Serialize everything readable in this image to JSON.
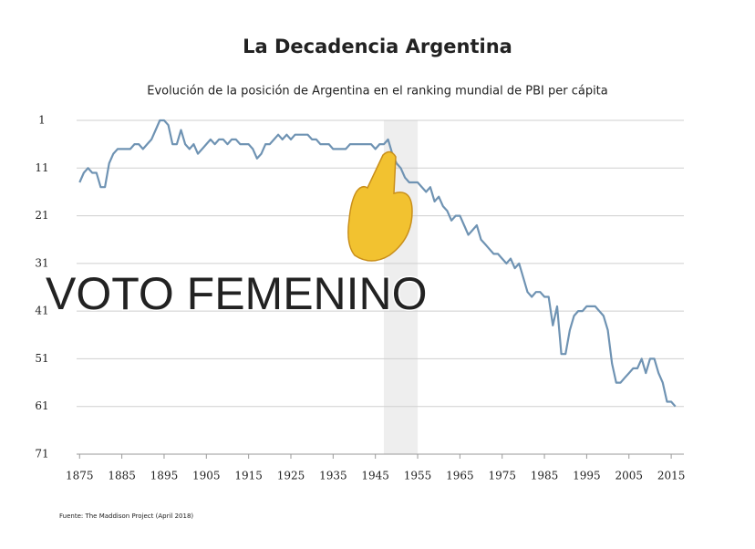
{
  "chart_data": {
    "type": "line",
    "title": "La Decadencia Argentina",
    "subtitle": "Evolución de la posición de Argentina en el ranking mundial de PBI per cápita",
    "source": "Fuente: The Maddison Project (April 2018)",
    "annotation": "VOTO FEMENINO",
    "highlight": [
      1947,
      1955
    ],
    "color": "#6f93b3",
    "y_inverted": true,
    "grid": true,
    "xlim": [
      1873,
      2018
    ],
    "xticks": [
      1875,
      1885,
      1895,
      1905,
      1915,
      1925,
      1935,
      1945,
      1955,
      1965,
      1975,
      1985,
      1995,
      2005,
      2015
    ],
    "ylim": [
      1,
      71
    ],
    "yticks": [
      1,
      11,
      21,
      31,
      41,
      51,
      61,
      71
    ],
    "x": [
      1875,
      1876,
      1877,
      1878,
      1879,
      1880,
      1881,
      1882,
      1883,
      1884,
      1885,
      1886,
      1887,
      1888,
      1889,
      1890,
      1891,
      1892,
      1893,
      1894,
      1895,
      1896,
      1897,
      1898,
      1899,
      1900,
      1901,
      1902,
      1903,
      1904,
      1905,
      1906,
      1907,
      1908,
      1909,
      1910,
      1911,
      1912,
      1913,
      1914,
      1915,
      1916,
      1917,
      1918,
      1919,
      1920,
      1921,
      1922,
      1923,
      1924,
      1925,
      1926,
      1927,
      1928,
      1929,
      1930,
      1931,
      1932,
      1933,
      1934,
      1935,
      1936,
      1937,
      1938,
      1939,
      1940,
      1941,
      1942,
      1943,
      1944,
      1945,
      1946,
      1947,
      1948,
      1949,
      1950,
      1951,
      1952,
      1953,
      1954,
      1955,
      1956,
      1957,
      1958,
      1959,
      1960,
      1961,
      1962,
      1963,
      1964,
      1965,
      1966,
      1967,
      1968,
      1969,
      1970,
      1971,
      1972,
      1973,
      1974,
      1975,
      1976,
      1977,
      1978,
      1979,
      1980,
      1981,
      1982,
      1983,
      1984,
      1985,
      1986,
      1987,
      1988,
      1989,
      1990,
      1991,
      1992,
      1993,
      1994,
      1995,
      1996,
      1997,
      1998,
      1999,
      2000,
      2001,
      2002,
      2003,
      2004,
      2005,
      2006,
      2007,
      2008,
      2009,
      2010,
      2011,
      2012,
      2013,
      2014,
      2015,
      2016
    ],
    "values": [
      14,
      12,
      11,
      12,
      12,
      15,
      15,
      10,
      8,
      7,
      7,
      7,
      7,
      6,
      6,
      7,
      6,
      5,
      3,
      1,
      1,
      2,
      6,
      6,
      3,
      6,
      7,
      6,
      8,
      7,
      6,
      5,
      6,
      5,
      5,
      6,
      5,
      5,
      6,
      6,
      6,
      7,
      9,
      8,
      6,
      6,
      5,
      4,
      5,
      4,
      5,
      4,
      4,
      4,
      4,
      5,
      5,
      6,
      6,
      6,
      7,
      7,
      7,
      7,
      6,
      6,
      6,
      6,
      6,
      6,
      7,
      6,
      6,
      5,
      8,
      10,
      11,
      13,
      14,
      14,
      14,
      15,
      16,
      15,
      18,
      17,
      19,
      20,
      22,
      21,
      21,
      23,
      25,
      24,
      23,
      26,
      27,
      28,
      29,
      29,
      30,
      31,
      30,
      32,
      31,
      34,
      37,
      38,
      37,
      37,
      38,
      38,
      44,
      40,
      50,
      50,
      45,
      42,
      41,
      41,
      40,
      40,
      40,
      41,
      42,
      45,
      52,
      56,
      56,
      55,
      54,
      53,
      53,
      51,
      54,
      51,
      51,
      54,
      56,
      60,
      60,
      61
    ]
  }
}
